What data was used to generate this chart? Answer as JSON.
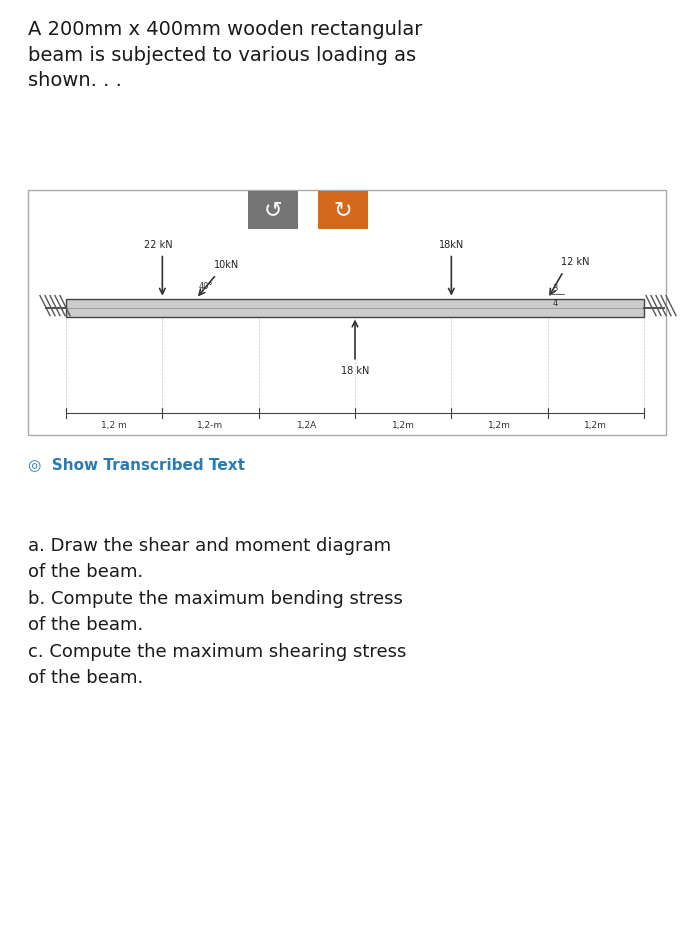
{
  "title_text": "A 200mm x 400mm wooden rectangular\nbeam is subjected to various loading as\nshown. . .",
  "title_fontsize": 14,
  "title_color": "#1a1a1a",
  "bg_color": "#ffffff",
  "btn1_color": "#757575",
  "btn2_color": "#d4691e",
  "btn_text_color": "#ffffff",
  "show_text_color": "#2a7ab5",
  "beam_color": "#cccccc",
  "beam_outline_color": "#444444",
  "question_fontsize": 13,
  "question_color": "#1a1a1a",
  "dim_label_strs": [
    "1,2 m",
    "1,2-m",
    "1,2A",
    "1,2m",
    "1,2m",
    "1,2m"
  ],
  "load_labels": [
    "22 kN",
    "10kN",
    "18kN",
    "12 kN",
    "18 kN"
  ],
  "page_bg": "#ffffff"
}
